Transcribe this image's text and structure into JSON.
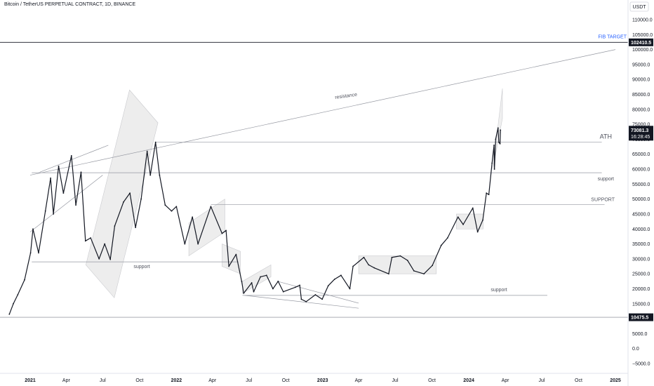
{
  "chart_data": {
    "type": "line",
    "title": "Bitcoin / TetherUS PERPETUAL CONTRACT, 1D, BINANCE",
    "currency": "USDT",
    "y_ticks": [
      -5000,
      0,
      5000,
      10000,
      15000,
      20000,
      25000,
      30000,
      35000,
      40000,
      45000,
      50000,
      55000,
      60000,
      65000,
      70000,
      75000,
      80000,
      85000,
      90000,
      95000,
      100000,
      105000,
      110000
    ],
    "y_tick_labels": [
      "−5000.0",
      "0.0",
      "5000.0",
      "10000.0",
      "15000.0",
      "20000.0",
      "25000.0",
      "30000.0",
      "35000.0",
      "40000.0",
      "45000.0",
      "50000.0",
      "55000.0",
      "60000.0",
      "65000.0",
      "70000.0",
      "75000.0",
      "80000.0",
      "85000.0",
      "90000.0",
      "95000.0",
      "100000.0",
      "105000.0",
      "110000.0"
    ],
    "x_tick_labels": [
      {
        "label": "2021",
        "date": "2021-01-01",
        "bold": true
      },
      {
        "label": "Apr",
        "date": "2021-04-01"
      },
      {
        "label": "Jul",
        "date": "2021-07-01"
      },
      {
        "label": "Oct",
        "date": "2021-10-01"
      },
      {
        "label": "2022",
        "date": "2022-01-01",
        "bold": true
      },
      {
        "label": "Apr",
        "date": "2022-04-01"
      },
      {
        "label": "Jul",
        "date": "2022-07-01"
      },
      {
        "label": "Oct",
        "date": "2022-10-01"
      },
      {
        "label": "2023",
        "date": "2023-01-01",
        "bold": true
      },
      {
        "label": "Apr",
        "date": "2023-04-01"
      },
      {
        "label": "Jul",
        "date": "2023-07-01"
      },
      {
        "label": "Oct",
        "date": "2023-10-01"
      },
      {
        "label": "2024",
        "date": "2024-01-01",
        "bold": true
      },
      {
        "label": "Apr",
        "date": "2024-04-01"
      },
      {
        "label": "Jul",
        "date": "2024-07-01"
      },
      {
        "label": "Oct",
        "date": "2024-10-01"
      },
      {
        "label": "2025",
        "date": "2025-01-01",
        "bold": true
      }
    ],
    "series": [
      {
        "values": [
          [
            "2020-11-10",
            11500
          ],
          [
            "2020-11-20",
            15000
          ],
          [
            "2020-12-01",
            18000
          ],
          [
            "2020-12-18",
            23000
          ],
          [
            "2021-01-02",
            32000
          ],
          [
            "2021-01-08",
            40000
          ],
          [
            "2021-01-22",
            32000
          ],
          [
            "2021-02-08",
            46000
          ],
          [
            "2021-02-21",
            57000
          ],
          [
            "2021-02-28",
            45000
          ],
          [
            "2021-03-13",
            61000
          ],
          [
            "2021-03-25",
            52000
          ],
          [
            "2021-04-14",
            64500
          ],
          [
            "2021-04-25",
            48000
          ],
          [
            "2021-05-08",
            59000
          ],
          [
            "2021-05-19",
            36000
          ],
          [
            "2021-06-01",
            37000
          ],
          [
            "2021-06-22",
            30000
          ],
          [
            "2021-07-06",
            35000
          ],
          [
            "2021-07-20",
            29800
          ],
          [
            "2021-07-31",
            41000
          ],
          [
            "2021-08-22",
            49000
          ],
          [
            "2021-09-07",
            52000
          ],
          [
            "2021-09-21",
            40500
          ],
          [
            "2021-10-05",
            50000
          ],
          [
            "2021-10-20",
            66000
          ],
          [
            "2021-10-28",
            58000
          ],
          [
            "2021-11-10",
            69000
          ],
          [
            "2021-11-20",
            58000
          ],
          [
            "2021-12-04",
            48000
          ],
          [
            "2021-12-20",
            46000
          ],
          [
            "2022-01-01",
            47500
          ],
          [
            "2022-01-22",
            35000
          ],
          [
            "2022-02-10",
            44000
          ],
          [
            "2022-02-24",
            35000
          ],
          [
            "2022-03-28",
            47500
          ],
          [
            "2022-04-25",
            38500
          ],
          [
            "2022-05-05",
            39500
          ],
          [
            "2022-05-12",
            27500
          ],
          [
            "2022-05-30",
            31500
          ],
          [
            "2022-06-13",
            22500
          ],
          [
            "2022-06-18",
            18500
          ],
          [
            "2022-07-08",
            22000
          ],
          [
            "2022-07-13",
            19000
          ],
          [
            "2022-07-30",
            24000
          ],
          [
            "2022-08-14",
            24500
          ],
          [
            "2022-08-30",
            20000
          ],
          [
            "2022-09-12",
            22500
          ],
          [
            "2022-09-25",
            19000
          ],
          [
            "2022-10-25",
            20500
          ],
          [
            "2022-11-05",
            21200
          ],
          [
            "2022-11-09",
            16500
          ],
          [
            "2022-11-21",
            15700
          ],
          [
            "2022-12-14",
            18000
          ],
          [
            "2022-12-31",
            16500
          ],
          [
            "2023-01-15",
            21000
          ],
          [
            "2023-01-31",
            23200
          ],
          [
            "2023-02-16",
            24500
          ],
          [
            "2023-03-10",
            20000
          ],
          [
            "2023-03-18",
            27500
          ],
          [
            "2023-04-14",
            30500
          ],
          [
            "2023-04-26",
            28000
          ],
          [
            "2023-05-10",
            27000
          ],
          [
            "2023-06-15",
            25000
          ],
          [
            "2023-06-23",
            30500
          ],
          [
            "2023-07-14",
            31000
          ],
          [
            "2023-08-01",
            29500
          ],
          [
            "2023-08-17",
            26000
          ],
          [
            "2023-09-11",
            25000
          ],
          [
            "2023-10-02",
            27800
          ],
          [
            "2023-10-24",
            34500
          ],
          [
            "2023-11-09",
            37000
          ],
          [
            "2023-12-05",
            44000
          ],
          [
            "2023-12-18",
            41500
          ],
          [
            "2024-01-11",
            47000
          ],
          [
            "2024-01-23",
            39000
          ],
          [
            "2024-02-05",
            43000
          ],
          [
            "2024-02-14",
            52000
          ],
          [
            "2024-02-20",
            51500
          ],
          [
            "2024-02-28",
            62000
          ],
          [
            "2024-03-04",
            68000
          ],
          [
            "2024-03-05",
            60000
          ],
          [
            "2024-03-08",
            70000
          ],
          [
            "2024-03-14",
            73800
          ],
          [
            "2024-03-16",
            69000
          ],
          [
            "2024-03-19",
            68500
          ],
          [
            "2024-03-20",
            73081.3
          ]
        ]
      }
    ],
    "horizontal_levels": [
      {
        "label": "FIB TARGET",
        "value": 102410.5,
        "badge": "102410.5"
      },
      {
        "label": "",
        "value": 10475.5,
        "badge": "10475.5"
      },
      {
        "label": "ATH",
        "value": 69000
      },
      {
        "label": "support",
        "value": 58800
      },
      {
        "label": "SUPPORT",
        "value": 48200
      },
      {
        "label": "support",
        "value": 29000
      },
      {
        "label": "support",
        "value": 17800
      }
    ],
    "trendline_labels": [
      {
        "label": "resistance"
      }
    ],
    "last_price": {
      "value": 73081.3,
      "label": "73081.3",
      "countdown": "16:28:45"
    },
    "grid": false,
    "ylim": [
      -6500,
      113000
    ]
  }
}
